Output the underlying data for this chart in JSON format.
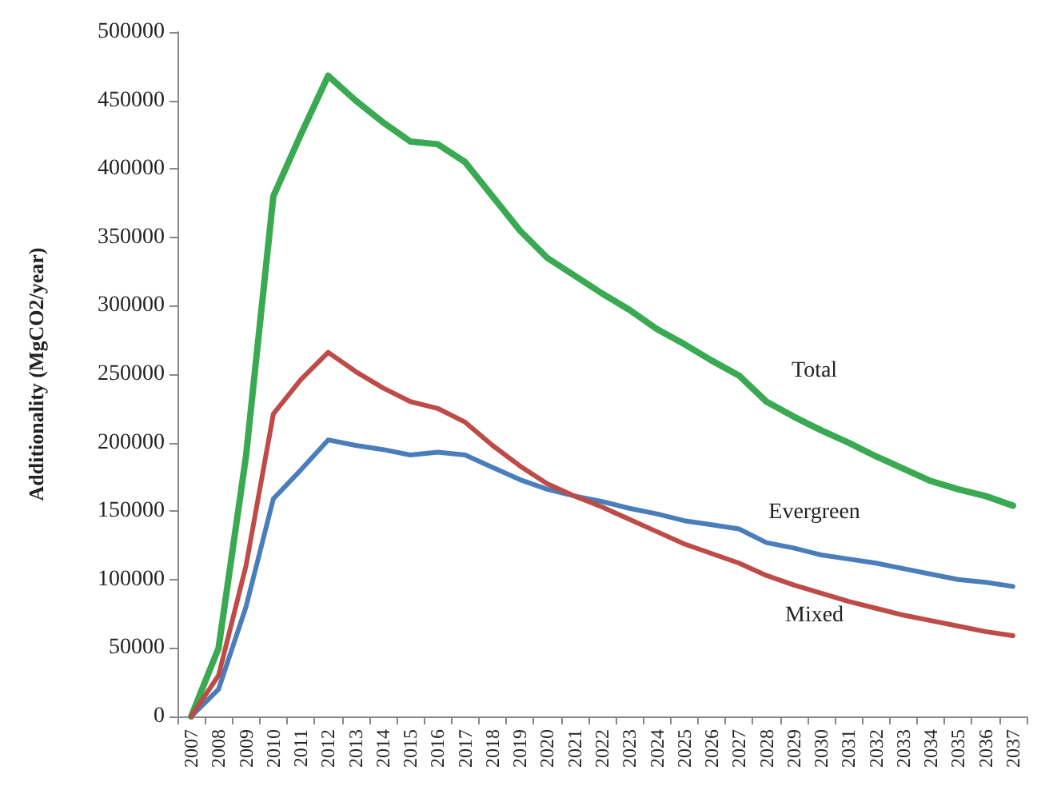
{
  "chart_data": {
    "type": "line",
    "ylabel": "Additionality (MgCO2/year)",
    "categories": [
      "2007",
      "2008",
      "2009",
      "2010",
      "2011",
      "2012",
      "2013",
      "2014",
      "2015",
      "2016",
      "2017",
      "2018",
      "2019",
      "2020",
      "2021",
      "2022",
      "2023",
      "2024",
      "2025",
      "2026",
      "2027",
      "2028",
      "2029",
      "2030",
      "2031",
      "2032",
      "2033",
      "2034",
      "2035",
      "2036",
      "2037"
    ],
    "series": [
      {
        "name": "Total",
        "color": "#3aaa52",
        "values": [
          0,
          50000,
          190000,
          380000,
          425000,
          468000,
          450000,
          434000,
          420000,
          418000,
          405000,
          380000,
          355000,
          335000,
          322000,
          309000,
          297000,
          283000,
          272000,
          260000,
          249000,
          230000,
          219000,
          209000,
          200000,
          190000,
          181000,
          172000,
          166000,
          161000,
          154000
        ]
      },
      {
        "name": "Evergreen",
        "color": "#4a7ebb",
        "values": [
          0,
          20000,
          80000,
          159000,
          180000,
          202000,
          198000,
          195000,
          191000,
          193000,
          191000,
          182000,
          173000,
          166000,
          161000,
          157000,
          152000,
          148000,
          143000,
          140000,
          137000,
          127000,
          123000,
          118000,
          115000,
          112000,
          108000,
          104000,
          100000,
          98000,
          95000
        ]
      },
      {
        "name": "Mixed",
        "color": "#be4b48",
        "values": [
          0,
          30000,
          110000,
          221000,
          246000,
          266000,
          252000,
          240000,
          230000,
          225000,
          215000,
          198000,
          183000,
          170000,
          161000,
          153000,
          144000,
          135000,
          126000,
          119000,
          112000,
          103000,
          96000,
          90000,
          84000,
          79000,
          74000,
          70000,
          66000,
          62000,
          59000
        ]
      }
    ],
    "ylim": [
      0,
      500000
    ],
    "yticks": [
      0,
      50000,
      100000,
      150000,
      200000,
      250000,
      300000,
      350000,
      400000,
      450000,
      500000
    ],
    "grid": false,
    "legend": false,
    "marker": "none",
    "line_style": "solid"
  }
}
